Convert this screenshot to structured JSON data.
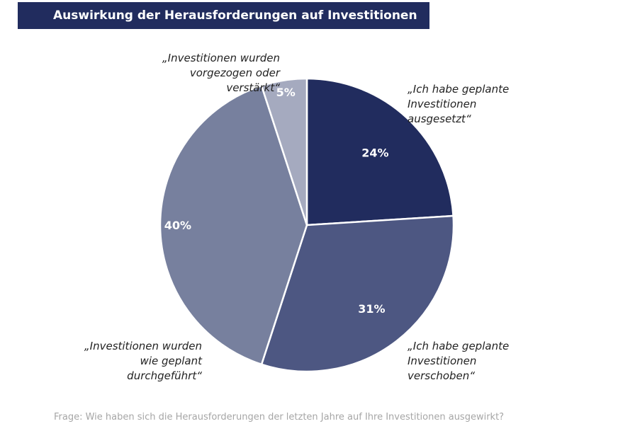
{
  "chart_data": {
    "type": "pie",
    "title": "Auswirkung der Herausforderungen auf Investitionen",
    "start_angle": "top, clockwise",
    "slices": [
      {
        "label": "„Ich habe geplante Investitionen ausgesetzt“",
        "value": 24,
        "value_label": "24%",
        "color": "#212c5e"
      },
      {
        "label": "„Ich habe geplante Investitionen verschoben“",
        "value": 31,
        "value_label": "31%",
        "color": "#4d5782"
      },
      {
        "label": "„Investitionen wurden wie geplant durchgeführt“",
        "value": 40,
        "value_label": "40%",
        "color": "#77809e"
      },
      {
        "label": "„Investitionen wurden vorgezogen oder verstärkt“",
        "value": 5,
        "value_label": "5%",
        "color": "#a5aabf"
      }
    ],
    "caption": "Frage: Wie haben sich die Herausforderungen der letzten Jahre auf Ihre Investitionen ausgewirkt?"
  }
}
